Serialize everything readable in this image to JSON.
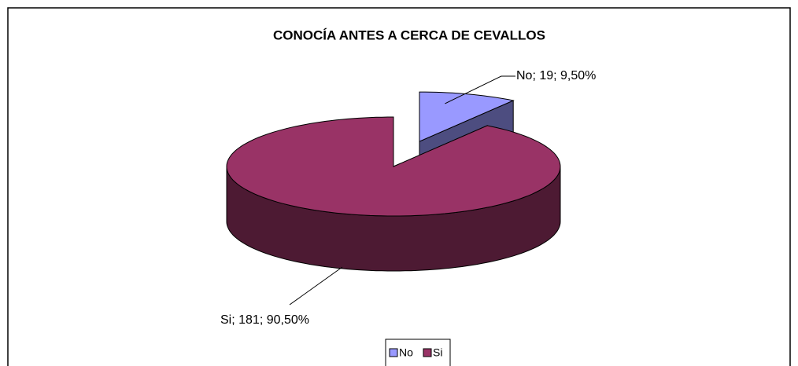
{
  "chart_data": {
    "type": "pie",
    "title": "CONOCÍA ANTES A CERCA DE CEVALLOS",
    "categories": [
      "No",
      "Si"
    ],
    "values": [
      19,
      181
    ],
    "value_labels": [
      "No; 19; 9,50%",
      "Si; 181; 90,50%"
    ],
    "colors": [
      "#9999ff",
      "#993366"
    ],
    "legend": "bottom"
  }
}
